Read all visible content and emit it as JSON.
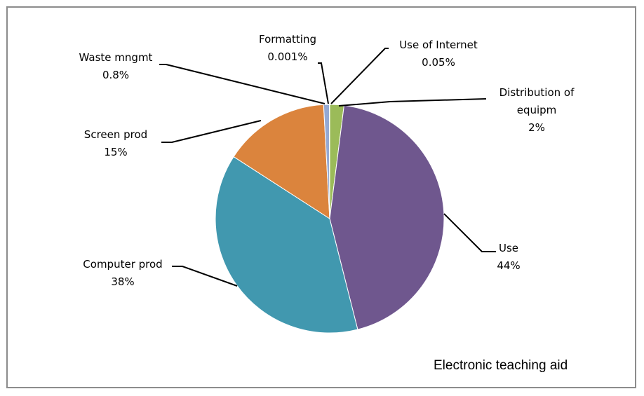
{
  "chart_data": {
    "type": "pie",
    "annotation": "Electronic teaching aid",
    "slices": [
      {
        "label": "Distribution of equipm",
        "label_lines": [
          "Distribution of",
          "equipm"
        ],
        "percent_text": "2%",
        "value": 2,
        "color": "#9BBB59"
      },
      {
        "label": "Use",
        "label_lines": [
          "Use"
        ],
        "percent_text": "44%",
        "value": 44,
        "color": "#6F578E"
      },
      {
        "label": "Computer prod",
        "label_lines": [
          "Computer prod"
        ],
        "percent_text": "38%",
        "value": 38,
        "color": "#4198AF"
      },
      {
        "label": "Screen prod",
        "label_lines": [
          "Screen prod"
        ],
        "percent_text": "15%",
        "value": 15,
        "color": "#DB843D"
      },
      {
        "label": "Waste mngmt",
        "label_lines": [
          "Waste mngmt"
        ],
        "percent_text": "0.8%",
        "value": 0.8,
        "color": "#94A9D3"
      },
      {
        "label": "Formatting",
        "label_lines": [
          "Formatting"
        ],
        "percent_text": "0.001%",
        "value": 0.001,
        "color": "#4F81BD"
      },
      {
        "label": "Use of Internet",
        "label_lines": [
          "Use of Internet"
        ],
        "percent_text": "0.05%",
        "value": 0.05,
        "color": "#C0504D"
      }
    ]
  }
}
